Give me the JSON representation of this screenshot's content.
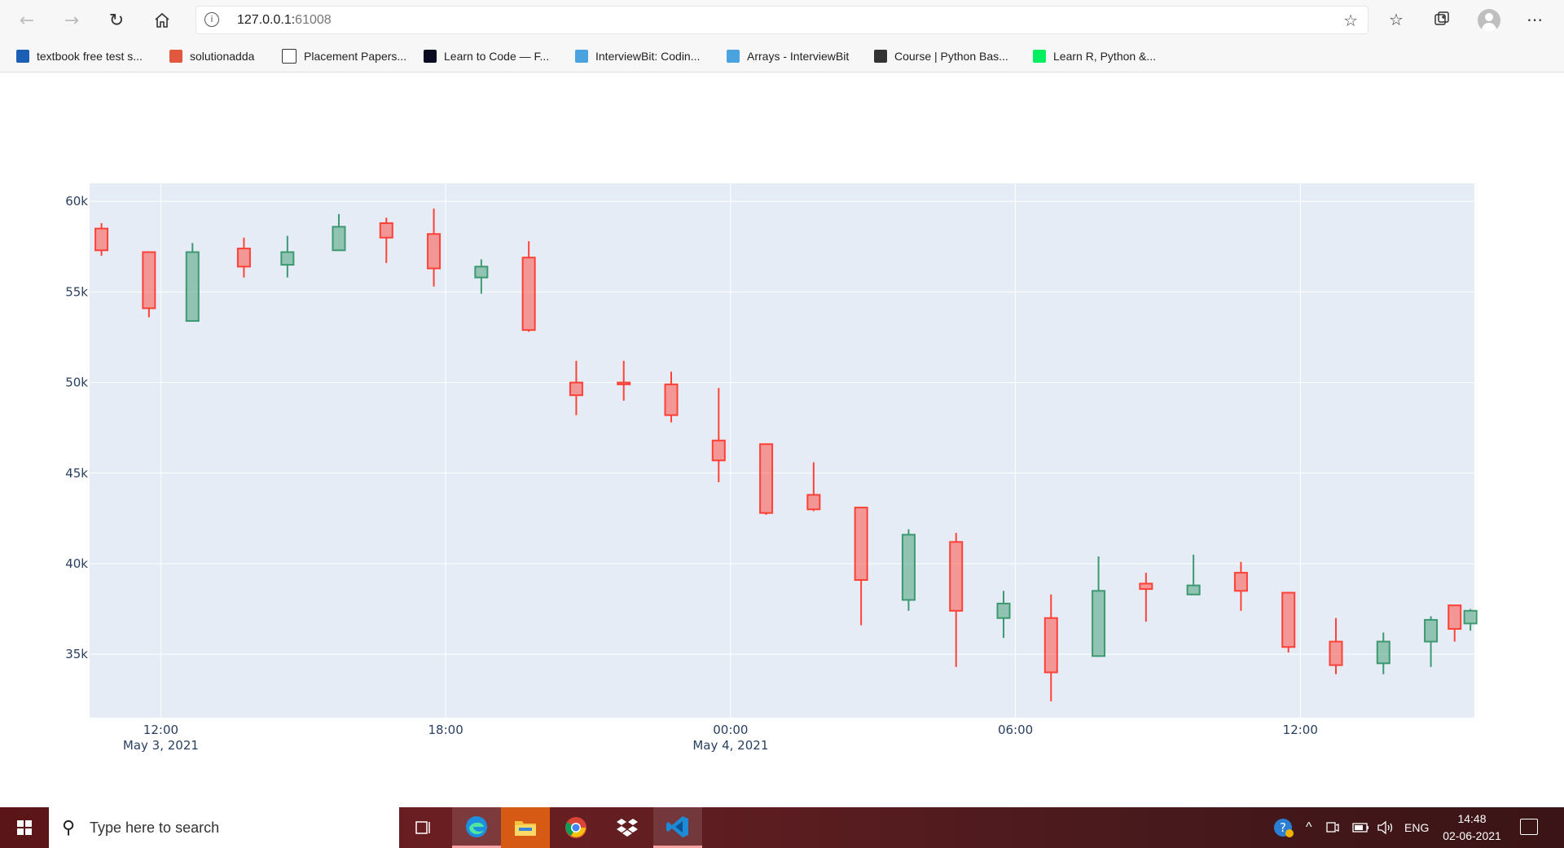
{
  "browser": {
    "address_host": "127.0.0.1:",
    "address_port": "61008",
    "bookmarks": [
      {
        "label": "textbook free test s...",
        "color": "#1a5fb4"
      },
      {
        "label": "solutionadda",
        "color": "#e2583e"
      },
      {
        "label": "Placement Papers...",
        "color": "#ffffff"
      },
      {
        "label": "Learn to Code — F...",
        "color": "#0a0a23"
      },
      {
        "label": "InterviewBit: Codin...",
        "color": "#4aa3df"
      },
      {
        "label": "Arrays - InterviewBit",
        "color": "#4aa3df"
      },
      {
        "label": "Course | Python Bas...",
        "color": "#333333"
      },
      {
        "label": "Learn R, Python &...",
        "color": "#03ef62"
      }
    ]
  },
  "chart_data": {
    "type": "candlestick",
    "increasing_color": "#3d9970",
    "decreasing_color": "#ff4136",
    "plot_background": "#e5ecf6",
    "grid": true,
    "x_range": [
      "2021-05-03T10:30",
      "2021-05-04T15:40"
    ],
    "y_range": [
      31500,
      61000
    ],
    "y_ticks": [
      35000,
      40000,
      45000,
      50000,
      55000,
      60000
    ],
    "y_tick_labels": [
      "35k",
      "40k",
      "45k",
      "50k",
      "55k",
      "60k"
    ],
    "x_ticks": [
      {
        "time": "2021-05-03T12:00",
        "label": "12:00",
        "sublabel": "May 3, 2021"
      },
      {
        "time": "2021-05-03T18:00",
        "label": "18:00",
        "sublabel": ""
      },
      {
        "time": "2021-05-04T00:00",
        "label": "00:00",
        "sublabel": "May 4, 2021"
      },
      {
        "time": "2021-05-04T06:00",
        "label": "06:00",
        "sublabel": ""
      },
      {
        "time": "2021-05-04T12:00",
        "label": "12:00",
        "sublabel": ""
      }
    ],
    "candles": [
      {
        "time": "2021-05-03T10:45",
        "open": 58500,
        "high": 58800,
        "low": 57000,
        "close": 57300
      },
      {
        "time": "2021-05-03T11:45",
        "open": 57200,
        "high": 57200,
        "low": 53600,
        "close": 54100
      },
      {
        "time": "2021-05-03T12:40",
        "open": 53400,
        "high": 57700,
        "low": 53400,
        "close": 57200
      },
      {
        "time": "2021-05-03T13:45",
        "open": 57400,
        "high": 58000,
        "low": 55800,
        "close": 56400
      },
      {
        "time": "2021-05-03T14:40",
        "open": 56500,
        "high": 58100,
        "low": 55800,
        "close": 57200
      },
      {
        "time": "2021-05-03T15:45",
        "open": 57300,
        "high": 59300,
        "low": 57300,
        "close": 58600
      },
      {
        "time": "2021-05-03T16:45",
        "open": 58800,
        "high": 59100,
        "low": 56600,
        "close": 58000
      },
      {
        "time": "2021-05-03T17:45",
        "open": 58200,
        "high": 59600,
        "low": 55300,
        "close": 56300
      },
      {
        "time": "2021-05-03T18:45",
        "open": 55800,
        "high": 56800,
        "low": 54900,
        "close": 56400
      },
      {
        "time": "2021-05-03T19:45",
        "open": 56900,
        "high": 57800,
        "low": 52800,
        "close": 52900
      },
      {
        "time": "2021-05-03T20:45",
        "open": 50000,
        "high": 51200,
        "low": 48200,
        "close": 49300
      },
      {
        "time": "2021-05-03T21:45",
        "open": 50000,
        "high": 51200,
        "low": 49000,
        "close": 49900
      },
      {
        "time": "2021-05-03T22:45",
        "open": 49900,
        "high": 50600,
        "low": 47800,
        "close": 48200
      },
      {
        "time": "2021-05-03T23:45",
        "open": 46800,
        "high": 49700,
        "low": 44500,
        "close": 45700
      },
      {
        "time": "2021-05-04T00:45",
        "open": 46600,
        "high": 46600,
        "low": 42700,
        "close": 42800
      },
      {
        "time": "2021-05-04T01:45",
        "open": 43800,
        "high": 45600,
        "low": 42900,
        "close": 43000
      },
      {
        "time": "2021-05-04T02:45",
        "open": 43100,
        "high": 43100,
        "low": 36600,
        "close": 39100
      },
      {
        "time": "2021-05-04T03:45",
        "open": 38000,
        "high": 41900,
        "low": 37400,
        "close": 41600
      },
      {
        "time": "2021-05-04T04:45",
        "open": 41200,
        "high": 41700,
        "low": 34300,
        "close": 37400
      },
      {
        "time": "2021-05-04T05:45",
        "open": 37000,
        "high": 38500,
        "low": 35900,
        "close": 37800
      },
      {
        "time": "2021-05-04T06:45",
        "open": 37000,
        "high": 38300,
        "low": 32400,
        "close": 34000
      },
      {
        "time": "2021-05-04T07:45",
        "open": 34900,
        "high": 40400,
        "low": 34900,
        "close": 38500
      },
      {
        "time": "2021-05-04T08:45",
        "open": 38900,
        "high": 39500,
        "low": 36800,
        "close": 38600
      },
      {
        "time": "2021-05-04T09:45",
        "open": 38300,
        "high": 40500,
        "low": 38300,
        "close": 38800
      },
      {
        "time": "2021-05-04T10:45",
        "open": 39500,
        "high": 40100,
        "low": 37400,
        "close": 38500
      },
      {
        "time": "2021-05-04T11:45",
        "open": 38400,
        "high": 38400,
        "low": 35100,
        "close": 35400
      },
      {
        "time": "2021-05-04T12:45",
        "open": 35700,
        "high": 37000,
        "low": 33900,
        "close": 34400
      },
      {
        "time": "2021-05-04T13:45",
        "open": 34500,
        "high": 36200,
        "low": 33900,
        "close": 35700
      },
      {
        "time": "2021-05-04T14:45",
        "open": 35700,
        "high": 37100,
        "low": 34300,
        "close": 36900
      },
      {
        "time": "2021-05-04T15:15",
        "open": 37700,
        "high": 37700,
        "low": 35700,
        "close": 36400
      },
      {
        "time": "2021-05-04T15:35",
        "open": 36700,
        "high": 37500,
        "low": 36300,
        "close": 37400
      }
    ]
  },
  "taskbar": {
    "search_placeholder": "Type here to search",
    "language": "ENG",
    "time": "14:48",
    "date": "02-06-2021"
  }
}
